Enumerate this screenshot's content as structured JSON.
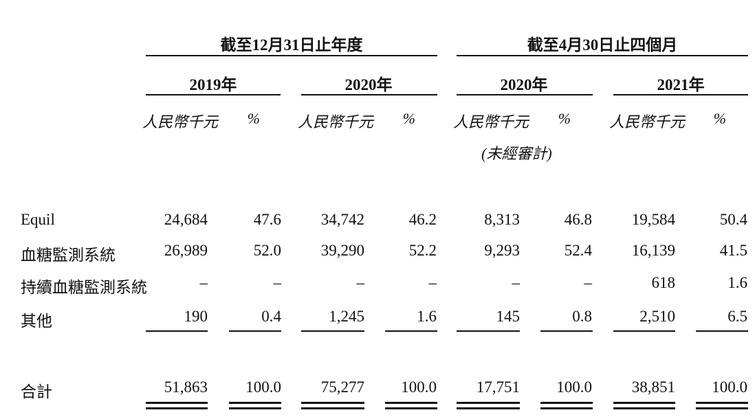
{
  "header": {
    "group1": "截至12月31日止年度",
    "group2": "截至4月30日止四個月",
    "years": [
      "2019年",
      "2020年",
      "2020年",
      "2021年"
    ],
    "unit": "人民幣千元",
    "pct": "%",
    "unaudited": "(未經審計)"
  },
  "rows": [
    {
      "label": "Equil",
      "values": [
        "24,684",
        "47.6",
        "34,742",
        "46.2",
        "8,313",
        "46.8",
        "19,584",
        "50.4"
      ]
    },
    {
      "label": "血糖監測系統",
      "values": [
        "26,989",
        "52.0",
        "39,290",
        "52.2",
        "9,293",
        "52.4",
        "16,139",
        "41.5"
      ]
    },
    {
      "label": "持續血糖監測系統",
      "values": [
        "–",
        "–",
        "–",
        "–",
        "–",
        "–",
        "618",
        "1.6"
      ]
    },
    {
      "label": "其他",
      "values": [
        "190",
        "0.4",
        "1,245",
        "1.6",
        "145",
        "0.8",
        "2,510",
        "6.5"
      ]
    }
  ],
  "total": {
    "label": "合計",
    "values": [
      "51,863",
      "100.0",
      "75,277",
      "100.0",
      "17,751",
      "100.0",
      "38,851",
      "100.0"
    ]
  }
}
